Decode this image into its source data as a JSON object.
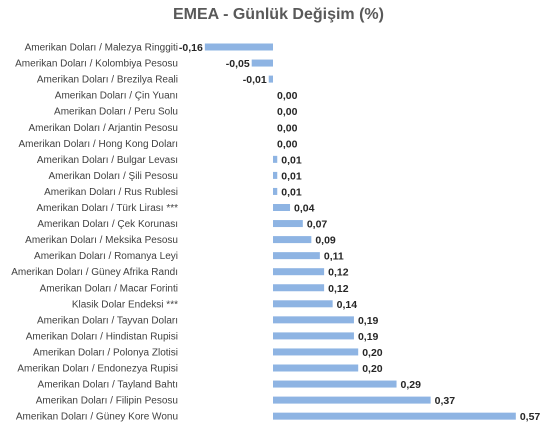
{
  "chart_data": {
    "type": "bar",
    "orientation": "horizontal",
    "title": "EMEA - Günlük Değişim (%)",
    "grid": false,
    "legend": "none",
    "bar_color": "#8eb4e3",
    "xlim": [
      -0.16,
      0.57
    ],
    "categories": [
      "Amerikan Doları / Malezya Ringgiti",
      "Amerikan Doları / Kolombiya Pesosu",
      "Amerikan Doları / Brezilya Reali",
      "Amerikan Doları / Çin Yuanı",
      "Amerikan Doları / Peru Solu",
      "Amerikan Doları / Arjantin Pesosu",
      "Amerikan Doları / Hong Kong Doları",
      "Amerikan Doları / Bulgar Levası",
      "Amerikan Doları / Şili Pesosu",
      "Amerikan Doları / Rus Rublesi",
      "Amerikan Doları / Türk Lirası ***",
      "Amerikan Doları / Çek Korunası",
      "Amerikan Doları / Meksika Pesosu",
      "Amerikan Doları / Romanya Leyi",
      "Amerikan Doları / Güney Afrika Randı",
      "Amerikan Doları / Macar Forinti",
      "Klasik Dolar Endeksi ***",
      "Amerikan Doları / Tayvan Doları",
      "Amerikan Doları / Hindistan Rupisi",
      "Amerikan Doları / Polonya Zlotisi",
      "Amerikan Doları / Endonezya Rupisi",
      "Amerikan Doları / Tayland Bahtı",
      "Amerikan Doları / Filipin Pesosu",
      "Amerikan Doları / Güney Kore Wonu"
    ],
    "values": [
      -0.16,
      -0.05,
      -0.01,
      0.0,
      0.0,
      0.0,
      0.0,
      0.01,
      0.01,
      0.01,
      0.04,
      0.07,
      0.09,
      0.11,
      0.12,
      0.12,
      0.14,
      0.19,
      0.19,
      0.2,
      0.2,
      0.29,
      0.37,
      0.57
    ],
    "value_labels": [
      "-0,16",
      "-0,05",
      "-0,01",
      "0,00",
      "0,00",
      "0,00",
      "0,00",
      "0,01",
      "0,01",
      "0,01",
      "0,04",
      "0,07",
      "0,09",
      "0,11",
      "0,12",
      "0,12",
      "0,14",
      "0,19",
      "0,19",
      "0,20",
      "0,20",
      "0,29",
      "0,37",
      "0,57"
    ]
  }
}
